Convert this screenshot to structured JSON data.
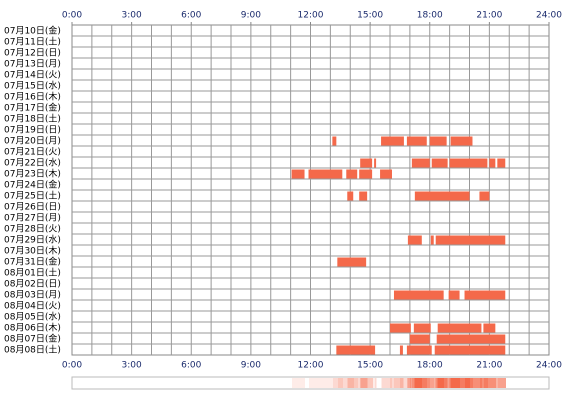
{
  "chart_data": {
    "type": "timeline",
    "categories": [
      "07月10日(金)",
      "07月11日(土)",
      "07月12日(日)",
      "07月13日(月)",
      "07月14日(火)",
      "07月15日(水)",
      "07月16日(木)",
      "07月17日(金)",
      "07月18日(土)",
      "07月19日(日)",
      "07月20日(月)",
      "07月21日(火)",
      "07月22日(水)",
      "07月23日(木)",
      "07月24日(金)",
      "07月25日(土)",
      "07月26日(日)",
      "07月27日(月)",
      "07月28日(火)",
      "07月29日(水)",
      "07月30日(木)",
      "07月31日(金)",
      "08月01日(土)",
      "08月02日(日)",
      "08月03日(月)",
      "08月04日(火)",
      "08月05日(水)",
      "08月06日(木)",
      "08月07日(金)",
      "08月08日(土)"
    ],
    "segments": [
      [],
      [],
      [],
      [],
      [],
      [],
      [],
      [],
      [],
      [],
      [
        [
          13.1,
          13.3
        ],
        [
          15.55,
          16.7
        ],
        [
          16.85,
          17.85
        ],
        [
          18.0,
          18.85
        ],
        [
          19.05,
          20.15
        ]
      ],
      [],
      [
        [
          14.5,
          15.1
        ],
        [
          15.2,
          15.3
        ],
        [
          17.1,
          18.0
        ],
        [
          18.1,
          18.9
        ],
        [
          19.0,
          20.9
        ],
        [
          21.0,
          21.3
        ],
        [
          21.4,
          21.8
        ]
      ],
      [
        [
          11.05,
          11.7
        ],
        [
          11.9,
          13.6
        ],
        [
          13.8,
          14.35
        ],
        [
          14.45,
          15.1
        ],
        [
          15.5,
          16.1
        ]
      ],
      [],
      [
        [
          13.85,
          14.15
        ],
        [
          14.45,
          14.85
        ],
        [
          17.25,
          20.0
        ],
        [
          20.5,
          21.0
        ]
      ],
      [],
      [],
      [],
      [
        [
          16.9,
          17.6
        ],
        [
          18.05,
          18.2
        ],
        [
          18.3,
          21.8
        ]
      ],
      [],
      [
        [
          13.35,
          14.8
        ]
      ],
      [],
      [],
      [
        [
          16.2,
          18.7
        ],
        [
          18.95,
          19.5
        ],
        [
          19.75,
          21.8
        ]
      ],
      [],
      [],
      [
        [
          16.0,
          17.05
        ],
        [
          17.2,
          18.05
        ],
        [
          18.4,
          20.6
        ],
        [
          20.7,
          21.3
        ]
      ],
      [
        [
          17.0,
          18.0
        ],
        [
          18.35,
          21.8
        ]
      ],
      [
        [
          13.3,
          15.25
        ],
        [
          16.5,
          16.65
        ],
        [
          16.85,
          18.1
        ],
        [
          18.25,
          21.8
        ]
      ]
    ],
    "color": "#f4694a",
    "xlim": [
      0,
      24
    ],
    "xticks": [
      {
        "value": 0,
        "label": "0:00"
      },
      {
        "value": 3,
        "label": "3:00"
      },
      {
        "value": 6,
        "label": "6:00"
      },
      {
        "value": 9,
        "label": "9:00"
      },
      {
        "value": 12,
        "label": "12:00"
      },
      {
        "value": 15,
        "label": "15:00"
      },
      {
        "value": 18,
        "label": "18:00"
      },
      {
        "value": 21,
        "label": "21:00"
      },
      {
        "value": 24,
        "label": "24:00"
      }
    ],
    "grid": true,
    "x_grid_step": 1
  }
}
